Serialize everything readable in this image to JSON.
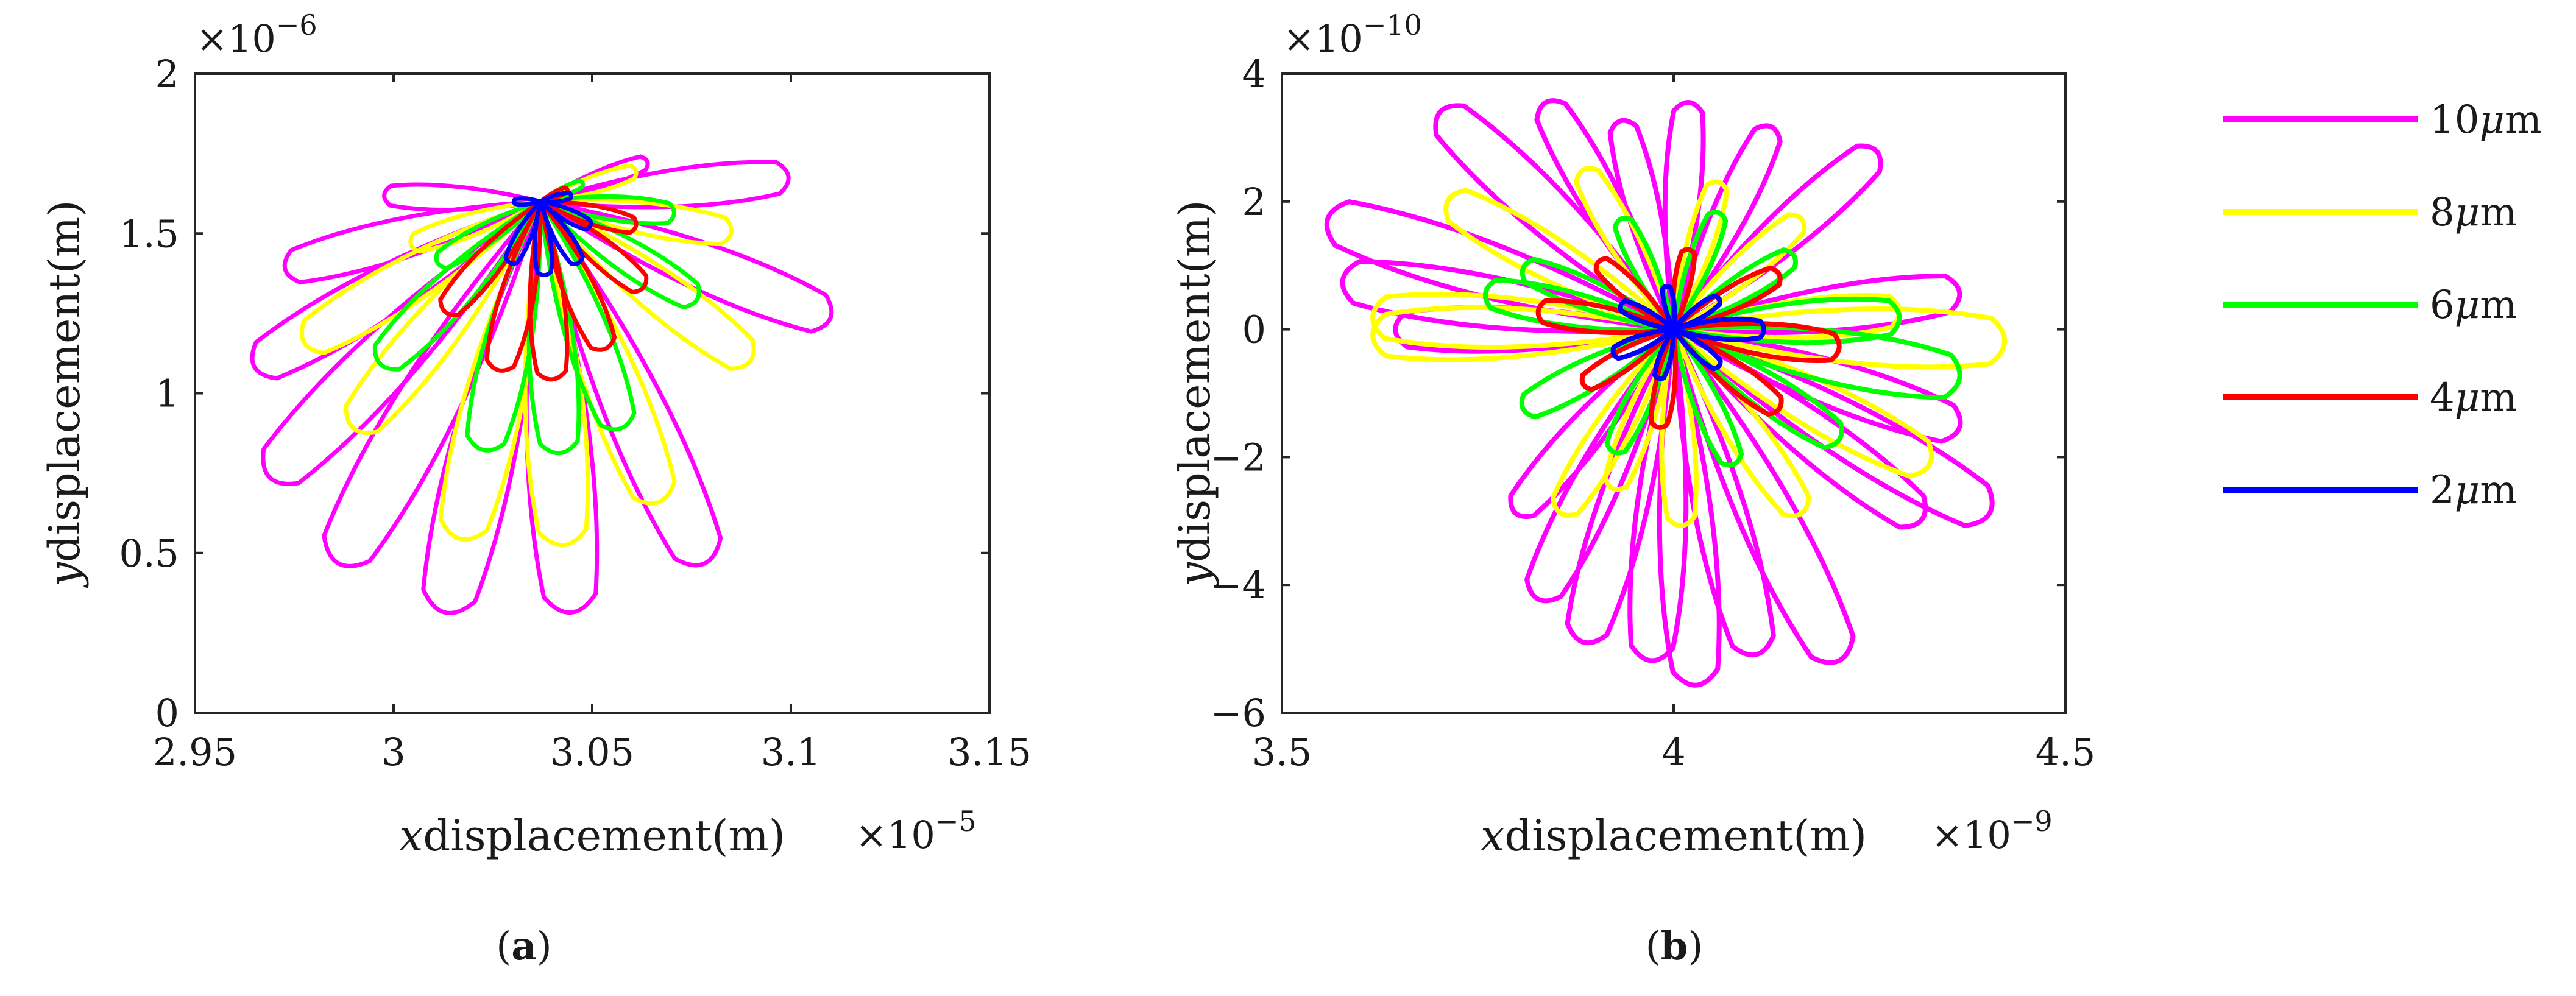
{
  "chart_data": [
    {
      "type": "line",
      "caption": {
        "open": "(",
        "letter": "a",
        "close": ")"
      },
      "xlabel": {
        "var": "x",
        "text": "displacement(m)"
      },
      "ylabel": {
        "var": "y",
        "text": "displacement(m)"
      },
      "x_multiplier": {
        "base": "×10",
        "exponent": "−5"
      },
      "y_multiplier": {
        "base": "×10",
        "exponent": "−6"
      },
      "xlim": [
        2.95,
        3.15
      ],
      "ylim": [
        0,
        2
      ],
      "xticks": [
        "2.95",
        "3",
        "3.05",
        "3.1",
        "3.15"
      ],
      "yticks": [
        "0",
        "0.5",
        "1",
        "1.5",
        "2"
      ],
      "center": [
        3.037,
        1.6
      ],
      "grid": false,
      "series": [
        {
          "name": "10μm",
          "color": "#ff00ff",
          "petals": [
            [
              2.962,
              1.06
            ],
            [
              2.966,
              0.7
            ],
            [
              2.984,
              0.42
            ],
            [
              3.012,
              0.26
            ],
            [
              3.045,
              0.26
            ],
            [
              3.08,
              0.42
            ],
            [
              3.113,
              1.22
            ],
            [
              3.102,
              1.68
            ],
            [
              3.065,
              1.73
            ],
            [
              2.996,
              1.62
            ],
            [
              2.97,
              1.38
            ]
          ]
        },
        {
          "name": "8μm",
          "color": "#ffff00",
          "petals": [
            [
              2.975,
              1.14
            ],
            [
              2.988,
              0.86
            ],
            [
              3.016,
              0.5
            ],
            [
              3.043,
              0.48
            ],
            [
              3.068,
              0.62
            ],
            [
              3.092,
              1.08
            ],
            [
              3.087,
              1.5
            ],
            [
              3.062,
              1.7
            ],
            [
              3.003,
              1.46
            ]
          ]
        },
        {
          "name": "6μm",
          "color": "#00ff00",
          "petals": [
            [
              2.995,
              1.07
            ],
            [
              3.022,
              0.79
            ],
            [
              3.042,
              0.78
            ],
            [
              3.058,
              0.86
            ],
            [
              3.078,
              1.28
            ],
            [
              3.072,
              1.56
            ],
            [
              3.048,
              1.66
            ],
            [
              3.01,
              1.4
            ]
          ]
        },
        {
          "name": "4μm",
          "color": "#ff0000",
          "petals": [
            [
              3.012,
              1.24
            ],
            [
              3.026,
              1.05
            ],
            [
              3.04,
              1.02
            ],
            [
              3.054,
              1.12
            ],
            [
              3.064,
              1.32
            ],
            [
              3.062,
              1.52
            ],
            [
              3.044,
              1.64
            ]
          ]
        },
        {
          "name": "2μm",
          "color": "#0000ff",
          "petals": [
            [
              3.029,
              1.4
            ],
            [
              3.038,
              1.36
            ],
            [
              3.047,
              1.4
            ],
            [
              3.05,
              1.52
            ],
            [
              3.045,
              1.62
            ],
            [
              3.03,
              1.6
            ]
          ]
        }
      ]
    },
    {
      "type": "line",
      "caption": {
        "open": "(",
        "letter": "b",
        "close": ")"
      },
      "xlabel": {
        "var": "x",
        "text": "displacement(m)"
      },
      "ylabel": {
        "var": "y",
        "text": "displacement(m)"
      },
      "x_multiplier": {
        "base": "×10",
        "exponent": "−9"
      },
      "y_multiplier": {
        "base": "×10",
        "exponent": "−10"
      },
      "xlim": [
        3.5,
        4.5
      ],
      "ylim": [
        -6,
        4
      ],
      "xticks": [
        "3.5",
        "4",
        "4.5"
      ],
      "yticks": [
        "−6",
        "−4",
        "−2",
        "0",
        "2",
        "4"
      ],
      "center": [
        4.0,
        0
      ],
      "grid": false,
      "series": [
        {
          "name": "10μm",
          "color": "#ff00ff",
          "petals": [
            [
              3.54,
              1.8
            ],
            [
              3.56,
              0.8
            ],
            [
              3.69,
              3.55
            ],
            [
              3.83,
              3.7
            ],
            [
              3.93,
              3.4
            ],
            [
              4.02,
              3.7
            ],
            [
              4.13,
              3.3
            ],
            [
              4.27,
              2.9
            ],
            [
              4.38,
              0.6
            ],
            [
              4.38,
              -1.6
            ],
            [
              4.42,
              -3.0
            ],
            [
              4.33,
              -3.1
            ],
            [
              4.22,
              -5.4
            ],
            [
              4.11,
              -5.3
            ],
            [
              4.03,
              -5.8
            ],
            [
              3.97,
              -5.4
            ],
            [
              3.88,
              -5.1
            ],
            [
              3.82,
              -4.4
            ],
            [
              3.79,
              -3.0
            ],
            [
              3.63,
              0.0
            ]
          ]
        },
        {
          "name": "8μm",
          "color": "#ffff00",
          "petals": [
            [
              3.6,
              0.2
            ],
            [
              3.6,
              -0.1
            ],
            [
              3.7,
              2.1
            ],
            [
              3.88,
              2.6
            ],
            [
              4.06,
              2.4
            ],
            [
              4.17,
              1.8
            ],
            [
              4.3,
              0.3
            ],
            [
              4.44,
              -0.2
            ],
            [
              4.34,
              -2.2
            ],
            [
              4.17,
              -3.0
            ],
            [
              4.01,
              -3.2
            ],
            [
              3.85,
              -3.0
            ],
            [
              3.92,
              -2.6
            ]
          ]
        },
        {
          "name": "6μm",
          "color": "#00ff00",
          "petals": [
            [
              3.75,
              0.6
            ],
            [
              3.8,
              1.0
            ],
            [
              3.93,
              1.8
            ],
            [
              4.06,
              1.9
            ],
            [
              4.16,
              1.2
            ],
            [
              4.3,
              0.2
            ],
            [
              4.38,
              -0.8
            ],
            [
              4.22,
              -1.8
            ],
            [
              4.08,
              -2.2
            ],
            [
              3.92,
              -2.0
            ],
            [
              3.8,
              -1.3
            ]
          ]
        },
        {
          "name": "4μm",
          "color": "#ff0000",
          "petals": [
            [
              3.82,
              0.3
            ],
            [
              3.9,
              1.1
            ],
            [
              4.02,
              1.3
            ],
            [
              4.14,
              0.9
            ],
            [
              4.22,
              -0.3
            ],
            [
              4.14,
              -1.3
            ],
            [
              3.98,
              -1.6
            ],
            [
              3.88,
              -0.9
            ]
          ]
        },
        {
          "name": "2μm",
          "color": "#0000ff",
          "petals": [
            [
              3.93,
              0.4
            ],
            [
              3.99,
              0.7
            ],
            [
              4.06,
              0.5
            ],
            [
              4.12,
              0.0
            ],
            [
              4.06,
              -0.6
            ],
            [
              3.98,
              -0.8
            ],
            [
              3.92,
              -0.4
            ]
          ]
        }
      ]
    }
  ],
  "legend": [
    {
      "label": "10μm",
      "number": "10",
      "unit": "μ",
      "unit2": "m",
      "color": "#ff00ff"
    },
    {
      "label": "8μm",
      "number": "8",
      "unit": "μ",
      "unit2": "m",
      "color": "#ffff00"
    },
    {
      "label": "6μm",
      "number": "6",
      "unit": "μ",
      "unit2": "m",
      "color": "#00ff00"
    },
    {
      "label": "4μm",
      "number": "4",
      "unit": "μ",
      "unit2": "m",
      "color": "#ff0000"
    },
    {
      "label": "2μm",
      "number": "2",
      "unit": "μ",
      "unit2": "m",
      "color": "#0000ff"
    }
  ]
}
